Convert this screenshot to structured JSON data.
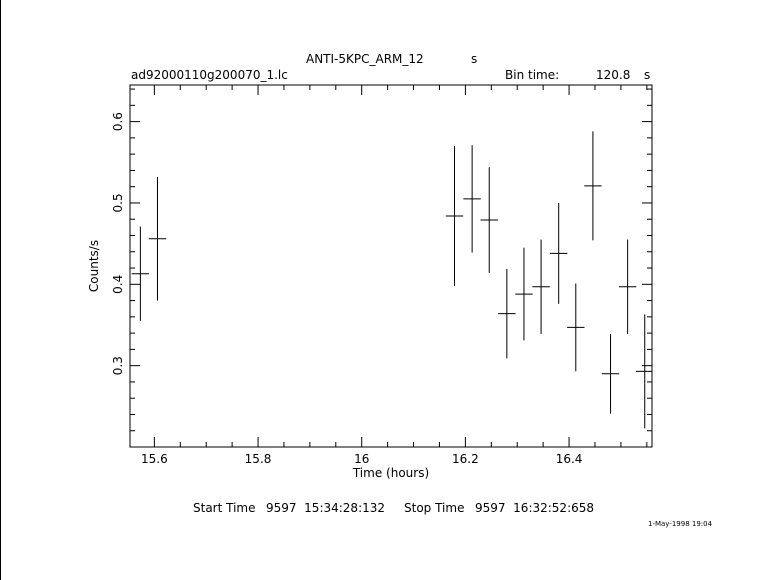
{
  "header": {
    "title": "ANTI-5KPC_ARM_12",
    "title_unit": "s",
    "filename": "ad92000110g200070_1.lc",
    "bin_time_label": "Bin time:",
    "bin_time_value": "120.8",
    "bin_time_unit": "s"
  },
  "footer": {
    "start_label": "Start Time",
    "start_value": "9597  15:34:28:132",
    "stop_label": "Stop Time",
    "stop_value": "9597  16:32:52:658",
    "timestamp": "1-May-1998 19:04"
  },
  "chart_data": {
    "type": "scatter",
    "xlabel": "Time (hours)",
    "ylabel": "Counts/s",
    "xlim": [
      15.553,
      16.56
    ],
    "ylim": [
      0.2,
      0.645
    ],
    "x_ticks": [
      15.6,
      15.8,
      16,
      16.2,
      16.4
    ],
    "y_ticks": [
      0.3,
      0.4,
      0.5,
      0.6
    ],
    "x_tick_labels": [
      "15.6",
      "15.8",
      "16",
      "16.2",
      "16.4"
    ],
    "y_tick_labels": [
      "0.3",
      "0.4",
      "0.5",
      "0.6"
    ],
    "x_half_width": 0.0168,
    "grid": false,
    "points": [
      {
        "x": 15.573,
        "y": 0.413,
        "yerr": 0.058
      },
      {
        "x": 15.606,
        "y": 0.456,
        "yerr": 0.076
      },
      {
        "x": 16.179,
        "y": 0.484,
        "yerr": 0.086
      },
      {
        "x": 16.213,
        "y": 0.505,
        "yerr": 0.066
      },
      {
        "x": 16.246,
        "y": 0.479,
        "yerr": 0.065
      },
      {
        "x": 16.28,
        "y": 0.364,
        "yerr": 0.055
      },
      {
        "x": 16.313,
        "y": 0.388,
        "yerr": 0.057
      },
      {
        "x": 16.346,
        "y": 0.397,
        "yerr": 0.058
      },
      {
        "x": 16.38,
        "y": 0.438,
        "yerr": 0.062
      },
      {
        "x": 16.413,
        "y": 0.347,
        "yerr": 0.054
      },
      {
        "x": 16.446,
        "y": 0.521,
        "yerr": 0.067
      },
      {
        "x": 16.48,
        "y": 0.29,
        "yerr": 0.049
      },
      {
        "x": 16.513,
        "y": 0.397,
        "yerr": 0.058
      },
      {
        "x": 16.546,
        "y": 0.293,
        "yerr": 0.07
      }
    ]
  }
}
